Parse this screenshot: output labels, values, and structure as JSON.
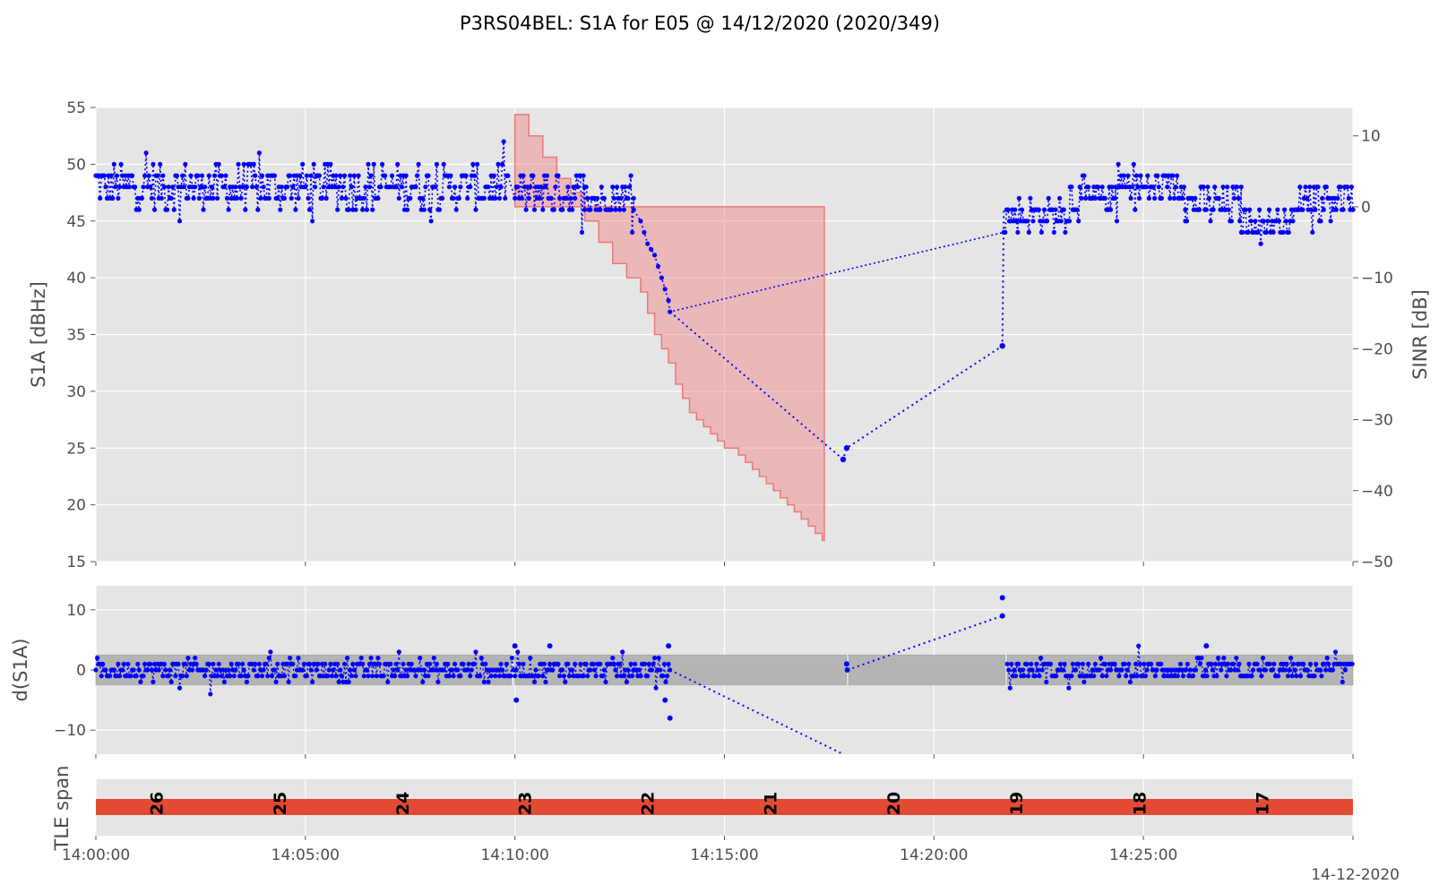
{
  "title": "P3RS04BEL: S1A for E05 @ 14/12/2020 (2020/349)",
  "date_label": "14-12-2020",
  "colors": {
    "panel_bg": "#e5e5e5",
    "grid": "#ffffff",
    "series": "#0000ff",
    "sinr_fill": "#f08080",
    "sinr_edge": "#e87a7a",
    "band_fill": "#b4b4b4",
    "tle_bar": "#e24a33",
    "text": "#4d4d4d"
  },
  "chart_data": [
    {
      "name": "s1a",
      "type": "scatter",
      "ylabel": "S1A [dBHz]",
      "ylabel_right": "SINR [dB]",
      "ylim": [
        15,
        55
      ],
      "yticks": [
        "15",
        "20",
        "25",
        "30",
        "35",
        "40",
        "45",
        "50",
        "55"
      ],
      "ylim_right": [
        -50,
        14
      ],
      "yticks_right": [
        "10",
        "0",
        "−10",
        "−20",
        "−30",
        "−40",
        "−50"
      ],
      "xlim": [
        0,
        1800
      ],
      "grid": true,
      "sinr_steps": [
        [
          600,
          13
        ],
        [
          620,
          10
        ],
        [
          640,
          7
        ],
        [
          660,
          4
        ],
        [
          680,
          2
        ],
        [
          700,
          -2
        ],
        [
          720,
          -5
        ],
        [
          740,
          -8
        ],
        [
          760,
          -10
        ],
        [
          780,
          -12
        ],
        [
          790,
          -15
        ],
        [
          800,
          -18
        ],
        [
          810,
          -20
        ],
        [
          820,
          -22
        ],
        [
          830,
          -25
        ],
        [
          840,
          -27
        ],
        [
          850,
          -29
        ],
        [
          860,
          -30
        ],
        [
          870,
          -31
        ],
        [
          880,
          -32
        ],
        [
          890,
          -33
        ],
        [
          900,
          -34
        ],
        [
          910,
          -34
        ],
        [
          920,
          -35
        ],
        [
          930,
          -36
        ],
        [
          940,
          -37
        ],
        [
          950,
          -38
        ],
        [
          960,
          -39
        ],
        [
          970,
          -40
        ],
        [
          980,
          -41
        ],
        [
          990,
          -42
        ],
        [
          1000,
          -43
        ],
        [
          1010,
          -44
        ],
        [
          1020,
          -45
        ],
        [
          1030,
          -46
        ],
        [
          1040,
          -47
        ]
      ],
      "sinr_upper": 0,
      "sinr_end": 1043,
      "segments": [
        {
          "x0": 0,
          "x1": 590,
          "base": 48,
          "spread": 1.2
        },
        {
          "x0": 600,
          "x1": 700,
          "base": 47.5,
          "spread": 1.2
        },
        {
          "x0": 700,
          "x1": 770,
          "base": 47,
          "spread": 0.9
        },
        {
          "x0": 1300,
          "x1": 1395,
          "base": 45.5,
          "spread": 0.8
        },
        {
          "x0": 1395,
          "x1": 1460,
          "base": 47,
          "spread": 1.0
        },
        {
          "x0": 1460,
          "x1": 1560,
          "base": 48,
          "spread": 1.0
        },
        {
          "x0": 1560,
          "x1": 1640,
          "base": 46.5,
          "spread": 1.0
        },
        {
          "x0": 1640,
          "x1": 1720,
          "base": 45,
          "spread": 0.8
        },
        {
          "x0": 1720,
          "x1": 1800,
          "base": 47,
          "spread": 1.0
        }
      ],
      "decline": [
        [
          770,
          46
        ],
        [
          780,
          45
        ],
        [
          785,
          44
        ],
        [
          790,
          43
        ],
        [
          795,
          42.5
        ],
        [
          800,
          42
        ],
        [
          805,
          41
        ],
        [
          810,
          40
        ],
        [
          815,
          39
        ],
        [
          820,
          38
        ],
        [
          822,
          37
        ]
      ],
      "gap_points": [
        {
          "x": 1070,
          "y": 24
        },
        {
          "x": 1075,
          "y": 25
        },
        {
          "x": 1298,
          "y": 34
        }
      ]
    },
    {
      "name": "d_s1a",
      "type": "scatter",
      "ylabel": "d(S1A)",
      "ylim": [
        -14,
        14
      ],
      "yticks": [
        "10",
        "0",
        "−10"
      ],
      "xlim": [
        0,
        1800
      ],
      "grid": true,
      "band": [
        -2.5,
        2.5
      ],
      "band_segments": [
        [
          0,
          595
        ],
        [
          600,
          1075
        ],
        [
          1078,
          1302
        ],
        [
          1305,
          1800
        ]
      ],
      "outliers": [
        {
          "x": 600,
          "y": 4
        },
        {
          "x": 602,
          "y": -5
        },
        {
          "x": 650,
          "y": 4
        },
        {
          "x": 820,
          "y": 4
        },
        {
          "x": 815,
          "y": -5
        },
        {
          "x": 822,
          "y": -8
        },
        {
          "x": 1075,
          "y": 1
        },
        {
          "x": 1076,
          "y": 0
        },
        {
          "x": 1298,
          "y": 12
        },
        {
          "x": 1298,
          "y": 9
        },
        {
          "x": 1590,
          "y": 4
        }
      ],
      "links": [
        [
          [
            822,
            0
          ],
          [
            1070,
            -14
          ]
        ],
        [
          [
            1076,
            0
          ],
          [
            1298,
            9
          ]
        ]
      ]
    },
    {
      "name": "tle",
      "type": "bar",
      "ylabel": "TLE span",
      "xlim": [
        0,
        1800
      ],
      "bar": [
        0,
        1800
      ],
      "labels": [
        {
          "x": 88,
          "text": "26"
        },
        {
          "x": 264,
          "text": "25"
        },
        {
          "x": 440,
          "text": "24"
        },
        {
          "x": 615,
          "text": "23"
        },
        {
          "x": 791,
          "text": "22"
        },
        {
          "x": 967,
          "text": "21"
        },
        {
          "x": 1143,
          "text": "20"
        },
        {
          "x": 1319,
          "text": "19"
        },
        {
          "x": 1495,
          "text": "18"
        },
        {
          "x": 1671,
          "text": "17"
        }
      ],
      "xticks": [
        {
          "x": 0,
          "label": "14:00:00"
        },
        {
          "x": 300,
          "label": "14:05:00"
        },
        {
          "x": 600,
          "label": "14:10:00"
        },
        {
          "x": 900,
          "label": "14:15:00"
        },
        {
          "x": 1200,
          "label": "14:20:00"
        },
        {
          "x": 1500,
          "label": "14:25:00"
        },
        {
          "x": 1800,
          "label": ""
        }
      ]
    }
  ]
}
